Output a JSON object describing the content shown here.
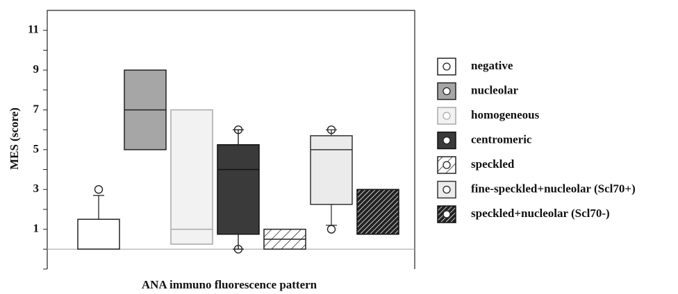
{
  "chart_data": {
    "type": "box",
    "y_label": "MES (score)",
    "x_label": "ANA immuno fluorescence pattern",
    "ylim": [
      -1,
      12
    ],
    "yticks": [
      1,
      3,
      5,
      7,
      9,
      11
    ],
    "minor_yticks": [
      -1,
      0,
      2,
      4,
      6,
      8,
      10
    ],
    "reference_line": 0,
    "boxes": [
      {
        "name": "negative",
        "min": 0,
        "q1": 0,
        "median": 0,
        "q3": 1.5,
        "max": 2.7,
        "outliers": [
          3
        ],
        "fill": "#ffffff",
        "stroke": "#222222"
      },
      {
        "name": "nucleolar",
        "min": 5,
        "q1": 5,
        "median": 7,
        "q3": 9,
        "max": 9,
        "outliers": [],
        "fill": "#a6a6a6",
        "stroke": "#222222"
      },
      {
        "name": "homogeneous",
        "min": 0.25,
        "q1": 0.25,
        "median": 1,
        "q3": 7,
        "max": 7,
        "outliers": [],
        "fill": "#f2f2f2",
        "stroke": "#a8a8a8"
      },
      {
        "name": "centromeric",
        "min": 0,
        "q1": 0.75,
        "median": 4,
        "q3": 5.25,
        "max": 6,
        "outliers": [
          0,
          6
        ],
        "fill": "#3a3a3a",
        "stroke": "#111111"
      },
      {
        "name": "speckled",
        "min": 0,
        "q1": 0,
        "median": 0.5,
        "q3": 1,
        "max": 1,
        "outliers": [],
        "fill": "#ffffff",
        "stroke": "#222222",
        "pattern": "light-hatch"
      },
      {
        "name": "fine-speckled+nucleolar (Scl70+)",
        "min": 1.2,
        "q1": 2.25,
        "median": 5,
        "q3": 5.7,
        "max": 6,
        "outliers": [
          1,
          6
        ],
        "fill": "#ebebeb",
        "stroke": "#333333"
      },
      {
        "name": "speckled+nucleolar (Scl70-)",
        "min": 0.75,
        "q1": 0.75,
        "median": 0.75,
        "q3": 3,
        "max": 3,
        "outliers": [],
        "fill": "#222222",
        "stroke": "#111111",
        "pattern": "dark-hatch"
      }
    ]
  }
}
